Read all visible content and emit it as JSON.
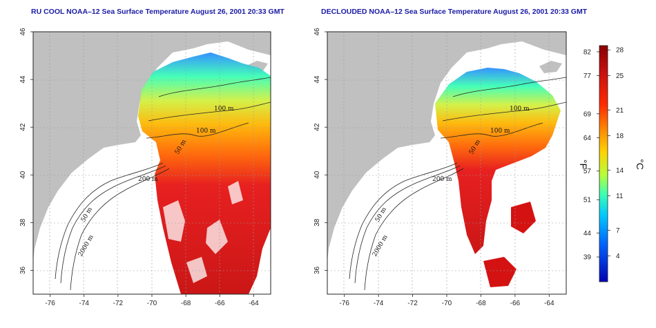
{
  "titles": {
    "left": "RU COOL NOAA–12 Sea Surface Temperature August 26, 2001 20:33 GMT",
    "right": "DECLOUDED NOAA–12 Sea Surface Temperature August 26, 2001 20:33 GMT"
  },
  "axes": {
    "lon_ticks": [
      "-76",
      "-74",
      "-72",
      "-70",
      "-68",
      "-66",
      "-64"
    ],
    "lat_ticks": [
      "36",
      "38",
      "40",
      "42",
      "44",
      "46"
    ],
    "lon_range": [
      -77,
      -63
    ],
    "lat_range": [
      35,
      46
    ]
  },
  "contour_labels": {
    "left": [
      "100 m",
      "100 m",
      "50 m",
      "200 m",
      "50 m",
      "2000 m"
    ],
    "right": [
      "100 m",
      "100 m",
      "50 m",
      "200 m",
      "50 m",
      "2000 m"
    ]
  },
  "colorbar": {
    "fahrenheit_ticks": [
      "82",
      "77",
      "69",
      "64",
      "57",
      "51",
      "44",
      "39"
    ],
    "celsius_ticks": [
      "28",
      "25",
      "21",
      "18",
      "14",
      "11",
      "7",
      "4"
    ],
    "fahrenheit_unit": "°F",
    "celsius_unit": "°C",
    "colors": [
      "#8b0000",
      "#cc1010",
      "#ff3300",
      "#ff8c00",
      "#ffd200",
      "#b4ff3c",
      "#3cffb4",
      "#00c8ff",
      "#0064ff",
      "#0000b4"
    ]
  },
  "colors": {
    "land": "#c0c0c0",
    "water": "#ffffff",
    "title": "#1a1aa6",
    "grid": "#9a9a9a"
  }
}
